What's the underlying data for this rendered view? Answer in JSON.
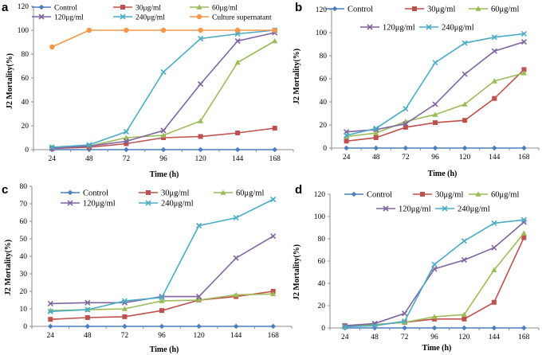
{
  "chart_data": [
    {
      "type": "line",
      "panel": "a",
      "xlabel": "Time (h)",
      "ylabel": "J2 Mortality(%)",
      "ylim": [
        0,
        120
      ],
      "yticks": [
        0,
        20,
        40,
        60,
        80,
        100,
        120
      ],
      "categories": [
        "24",
        "48",
        "72",
        "96",
        "120",
        "144",
        "168"
      ],
      "series": [
        {
          "name": "Control",
          "color": "#4a7ebf",
          "marker": "diamond",
          "values": [
            0,
            0,
            0,
            0,
            0,
            0,
            0
          ]
        },
        {
          "name": "30μg/ml",
          "color": "#c0504d",
          "marker": "square",
          "values": [
            1,
            2,
            5,
            10,
            11,
            14,
            18
          ]
        },
        {
          "name": "60μg/ml",
          "color": "#9bbb59",
          "marker": "triangle",
          "values": [
            2,
            3,
            10,
            12,
            24,
            73,
            91
          ]
        },
        {
          "name": "120μg/ml",
          "color": "#8064a2",
          "marker": "x",
          "values": [
            1,
            3,
            7,
            16,
            55,
            91,
            98
          ]
        },
        {
          "name": "240μg/ml",
          "color": "#4bacc6",
          "marker": "x",
          "values": [
            2,
            4,
            15,
            65,
            93,
            97,
            100
          ]
        },
        {
          "name": "Culture supernatant",
          "color": "#f79646",
          "marker": "circle",
          "values": [
            86,
            100,
            100,
            100,
            100,
            100,
            100
          ]
        }
      ]
    },
    {
      "type": "line",
      "panel": "b",
      "xlabel": "Time (h)",
      "ylabel": "J2 Mortality(%)",
      "ylim": [
        0,
        120
      ],
      "yticks": [
        0,
        20,
        40,
        60,
        80,
        100,
        120
      ],
      "categories": [
        "24",
        "48",
        "72",
        "96",
        "120",
        "144",
        "168"
      ],
      "series": [
        {
          "name": "Control",
          "color": "#4a7ebf",
          "marker": "diamond",
          "values": [
            0,
            0,
            0,
            0,
            0,
            0,
            0
          ]
        },
        {
          "name": "30μg/ml",
          "color": "#c0504d",
          "marker": "square",
          "values": [
            6,
            9,
            18,
            22,
            24,
            43,
            68
          ]
        },
        {
          "name": "60μg/ml",
          "color": "#9bbb59",
          "marker": "triangle",
          "values": [
            10,
            13,
            23,
            29,
            38,
            58,
            65
          ]
        },
        {
          "name": "120μg/ml",
          "color": "#8064a2",
          "marker": "x",
          "values": [
            14,
            16,
            21,
            38,
            64,
            84,
            92
          ]
        },
        {
          "name": "240μg/ml",
          "color": "#4bacc6",
          "marker": "x",
          "values": [
            11,
            17,
            34,
            74,
            91,
            96,
            99
          ]
        }
      ]
    },
    {
      "type": "line",
      "panel": "c",
      "xlabel": "Time (h)",
      "ylabel": "J2 Mortality(%)",
      "ylim": [
        0,
        80
      ],
      "yticks": [
        0,
        10,
        20,
        30,
        40,
        50,
        60,
        70,
        80
      ],
      "categories": [
        "24",
        "48",
        "72",
        "96",
        "120",
        "144",
        "168"
      ],
      "series": [
        {
          "name": "Control",
          "color": "#4a7ebf",
          "marker": "diamond",
          "values": [
            0,
            0,
            0,
            0,
            0,
            0,
            0
          ]
        },
        {
          "name": "30μg/ml",
          "color": "#c0504d",
          "marker": "square",
          "values": [
            4,
            5,
            5.5,
            9,
            15,
            17,
            20
          ]
        },
        {
          "name": "60μg/ml",
          "color": "#9bbb59",
          "marker": "triangle",
          "values": [
            9,
            9.5,
            10,
            14.5,
            15,
            18,
            18.5
          ]
        },
        {
          "name": "120μg/ml",
          "color": "#8064a2",
          "marker": "x",
          "values": [
            13,
            13.5,
            13.5,
            17,
            17,
            39,
            51.5
          ]
        },
        {
          "name": "240μg/ml",
          "color": "#4bacc6",
          "marker": "x",
          "values": [
            8.5,
            9.5,
            14.5,
            16.5,
            57.5,
            62,
            72.5
          ]
        }
      ]
    },
    {
      "type": "line",
      "panel": "d",
      "xlabel": "Time (h)",
      "ylabel": "J2 Mortality(%)",
      "ylim": [
        0,
        120
      ],
      "yticks": [
        0,
        20,
        40,
        60,
        80,
        100,
        120
      ],
      "categories": [
        "24",
        "48",
        "72",
        "96",
        "120",
        "144",
        "168"
      ],
      "series": [
        {
          "name": "Control",
          "color": "#4a7ebf",
          "marker": "diamond",
          "values": [
            0,
            0,
            0,
            0,
            0,
            0,
            0
          ]
        },
        {
          "name": "30μg/ml",
          "color": "#c0504d",
          "marker": "square",
          "values": [
            2,
            3,
            5,
            8,
            8,
            23,
            81
          ]
        },
        {
          "name": "60μg/ml",
          "color": "#9bbb59",
          "marker": "triangle",
          "values": [
            1,
            3,
            5,
            10,
            12,
            52,
            85
          ]
        },
        {
          "name": "120μg/ml",
          "color": "#8064a2",
          "marker": "x",
          "values": [
            2,
            4,
            13,
            53,
            61,
            72,
            95
          ]
        },
        {
          "name": "240μg/ml",
          "color": "#4bacc6",
          "marker": "x",
          "values": [
            1,
            2,
            6,
            57,
            78,
            94,
            97
          ]
        }
      ]
    }
  ]
}
